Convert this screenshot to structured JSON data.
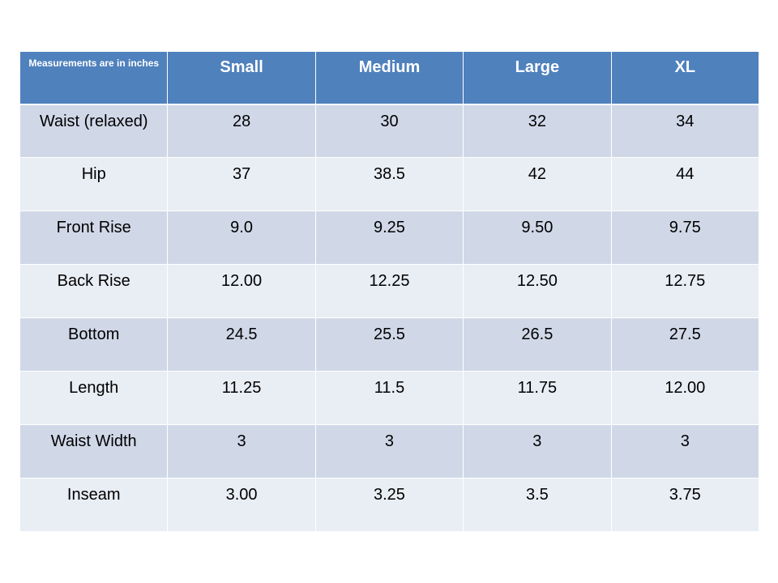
{
  "table": {
    "corner_label": "Measurements are in inches",
    "columns": [
      "Small",
      "Medium",
      "Large",
      "XL"
    ],
    "rows": [
      {
        "label": "Waist (relaxed)",
        "values": [
          "28",
          "30",
          "32",
          "34"
        ]
      },
      {
        "label": "Hip",
        "values": [
          "37",
          "38.5",
          "42",
          "44"
        ]
      },
      {
        "label": "Front Rise",
        "values": [
          "9.0",
          "9.25",
          "9.50",
          "9.75"
        ]
      },
      {
        "label": "Back Rise",
        "values": [
          "12.00",
          "12.25",
          "12.50",
          "12.75"
        ]
      },
      {
        "label": "Bottom",
        "values": [
          "24.5",
          "25.5",
          "26.5",
          "27.5"
        ]
      },
      {
        "label": "Length",
        "values": [
          "11.25",
          "11.5",
          "11.75",
          "12.00"
        ]
      },
      {
        "label": "Waist Width",
        "values": [
          "3",
          "3",
          "3",
          "3"
        ]
      },
      {
        "label": "Inseam",
        "values": [
          "3.00",
          "3.25",
          "3.5",
          "3.75"
        ]
      }
    ]
  },
  "colors": {
    "header_background": "#4f81bd",
    "header_text": "#ffffff",
    "row_band_dark": "#d0d8e8",
    "row_band_light": "#e9edf4"
  }
}
